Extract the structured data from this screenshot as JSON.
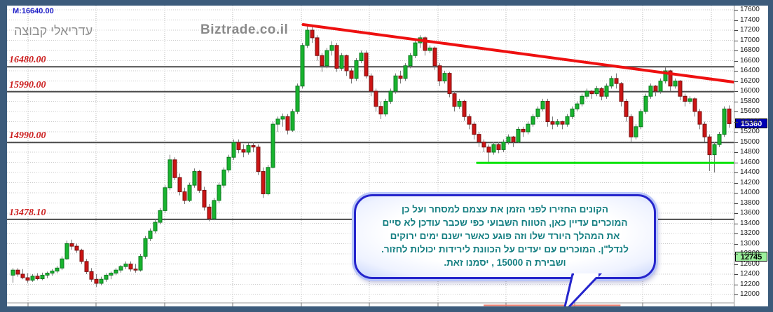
{
  "header": {
    "indicator_label": "M:16640.00",
    "group_title": "עדריאלי קבוצה",
    "watermark": "Biztrade.co.il"
  },
  "levels": [
    {
      "label": "16480.00",
      "price": 16480.0
    },
    {
      "label": "15990.00",
      "price": 15990.0
    },
    {
      "label": "14990.00",
      "price": 14990.0
    },
    {
      "label": "13478.10",
      "price": 13478.1
    }
  ],
  "axis": {
    "ticks": [
      17600,
      17400,
      17200,
      17000,
      16800,
      16600,
      16400,
      16200,
      16000,
      15800,
      15600,
      15400,
      15200,
      15000,
      14800,
      14600,
      14400,
      14200,
      14000,
      13800,
      13600,
      13400,
      13200,
      13000,
      12800,
      12600,
      12400,
      12200,
      12000
    ],
    "current_price_tag": {
      "value": "15360",
      "price": 15360,
      "bg": "#0000b4",
      "fg": "#ffffff"
    },
    "secondary_tag": {
      "value": "12745",
      "price": 12745,
      "bg": "#9cf09c",
      "fg": "#000000"
    }
  },
  "annotation_bubble": {
    "lines": [
      "הקונים החזירו לפני הזמן  את עצמם למסחר   ועל  כן",
      "המוכרים עדיין כאן,  הטווח השבועי  כפי שכבר  עודכן לא  סיים",
      "את המהלך היורד  שלו וזה  פוגע  כאשר   ישנם ימים  ירוקים",
      "לנדל\"ן. המוכרים עם  יעדים על  הכוונת  לירידות יכולות לחזור.",
      "ושבירת  ה  15000 , יסמנו זאת."
    ],
    "text_color": "#157f82"
  },
  "chart_data": {
    "type": "candlestick",
    "title": "",
    "price_axis": {
      "visible_min": 11900,
      "visible_max": 17683,
      "tick_step": 200
    },
    "colors": {
      "up": "#18b42e",
      "up_border": "#0a7a1e",
      "down": "#cc1414",
      "down_border": "#7a0f0f",
      "wick": "#787878",
      "trendline": "#ee1010",
      "support_line": "#00e400",
      "level_line": "#4a4a4a",
      "grid": "#c9c9c9",
      "session_marker": "#e87868"
    },
    "candles": [
      [
        12380,
        12520,
        12230,
        12480
      ],
      [
        12480,
        12520,
        12350,
        12400
      ],
      [
        12400,
        12500,
        12300,
        12330
      ],
      [
        12330,
        12420,
        12230,
        12280
      ],
      [
        12280,
        12400,
        12250,
        12360
      ],
      [
        12360,
        12420,
        12280,
        12310
      ],
      [
        12310,
        12430,
        12280,
        12380
      ],
      [
        12380,
        12450,
        12320,
        12420
      ],
      [
        12420,
        12500,
        12370,
        12460
      ],
      [
        12460,
        12560,
        12420,
        12520
      ],
      [
        12520,
        12750,
        12480,
        12700
      ],
      [
        12700,
        13060,
        12680,
        13000
      ],
      [
        13000,
        13080,
        12880,
        12950
      ],
      [
        12950,
        13000,
        12820,
        12870
      ],
      [
        12870,
        12900,
        12600,
        12650
      ],
      [
        12650,
        12700,
        12400,
        12450
      ],
      [
        12450,
        12520,
        12250,
        12300
      ],
      [
        12300,
        12400,
        12150,
        12220
      ],
      [
        12220,
        12350,
        12180,
        12300
      ],
      [
        12300,
        12420,
        12250,
        12380
      ],
      [
        12380,
        12450,
        12300,
        12420
      ],
      [
        12420,
        12520,
        12380,
        12480
      ],
      [
        12480,
        12580,
        12430,
        12550
      ],
      [
        12550,
        12650,
        12500,
        12600
      ],
      [
        12600,
        12650,
        12450,
        12500
      ],
      [
        12500,
        12600,
        12430,
        12480
      ],
      [
        12480,
        12800,
        12450,
        12750
      ],
      [
        12750,
        13150,
        12700,
        13100
      ],
      [
        13100,
        13300,
        13050,
        13250
      ],
      [
        13250,
        13480,
        13200,
        13420
      ],
      [
        13420,
        13700,
        13380,
        13650
      ],
      [
        13650,
        14150,
        13600,
        14100
      ],
      [
        14100,
        14750,
        14050,
        14650
      ],
      [
        14650,
        14700,
        14250,
        14300
      ],
      [
        14300,
        14380,
        13950,
        14020
      ],
      [
        14020,
        14100,
        13780,
        13850
      ],
      [
        13850,
        14200,
        13820,
        14150
      ],
      [
        14150,
        14480,
        14100,
        14420
      ],
      [
        14420,
        14450,
        14000,
        14050
      ],
      [
        14050,
        14120,
        13650,
        13720
      ],
      [
        13720,
        13780,
        13440,
        13490
      ],
      [
        13490,
        13900,
        13460,
        13850
      ],
      [
        13850,
        14200,
        13800,
        14150
      ],
      [
        14150,
        14500,
        14100,
        14450
      ],
      [
        14450,
        14750,
        14400,
        14700
      ],
      [
        14700,
        15050,
        14650,
        14990
      ],
      [
        14990,
        15050,
        14780,
        14850
      ],
      [
        14850,
        14950,
        14700,
        14800
      ],
      [
        14800,
        14980,
        14750,
        14930
      ],
      [
        14930,
        15000,
        14800,
        14900
      ],
      [
        14900,
        14950,
        14350,
        14420
      ],
      [
        14420,
        14500,
        13900,
        13980
      ],
      [
        13980,
        14550,
        13950,
        14500
      ],
      [
        14500,
        15400,
        14480,
        15350
      ],
      [
        15350,
        15500,
        15200,
        15450
      ],
      [
        15450,
        15560,
        15300,
        15500
      ],
      [
        15500,
        15550,
        15150,
        15230
      ],
      [
        15230,
        15650,
        15200,
        15600
      ],
      [
        15600,
        16150,
        15550,
        16100
      ],
      [
        16100,
        16950,
        16050,
        16900
      ],
      [
        16900,
        17280,
        16850,
        17200
      ],
      [
        17200,
        17260,
        16950,
        17050
      ],
      [
        17050,
        17100,
        16600,
        16700
      ],
      [
        16700,
        16750,
        16380,
        16500
      ],
      [
        16500,
        16850,
        16450,
        16800
      ],
      [
        16800,
        16980,
        16700,
        16900
      ],
      [
        16900,
        16950,
        16380,
        16450
      ],
      [
        16450,
        16750,
        16400,
        16700
      ],
      [
        16700,
        16720,
        16300,
        16400
      ],
      [
        16400,
        16450,
        16150,
        16250
      ],
      [
        16250,
        16650,
        16200,
        16600
      ],
      [
        16600,
        16800,
        16550,
        16750
      ],
      [
        16750,
        16800,
        16250,
        16300
      ],
      [
        16300,
        16350,
        15900,
        16000
      ],
      [
        16000,
        16050,
        15600,
        15700
      ],
      [
        15700,
        15800,
        15450,
        15550
      ],
      [
        15550,
        15850,
        15500,
        15800
      ],
      [
        15800,
        16050,
        15750,
        16000
      ],
      [
        16000,
        16350,
        15950,
        16300
      ],
      [
        16300,
        16400,
        16150,
        16250
      ],
      [
        16250,
        16550,
        16200,
        16500
      ],
      [
        16500,
        16750,
        16450,
        16700
      ],
      [
        16700,
        17000,
        16650,
        16950
      ],
      [
        16950,
        17100,
        16850,
        17050
      ],
      [
        17050,
        17080,
        16700,
        16800
      ],
      [
        16800,
        16900,
        16750,
        16850
      ],
      [
        16850,
        16880,
        16420,
        16500
      ],
      [
        16500,
        16550,
        16100,
        16200
      ],
      [
        16200,
        16400,
        16150,
        16350
      ],
      [
        16350,
        16380,
        15880,
        15950
      ],
      [
        15950,
        16000,
        15600,
        15700
      ],
      [
        15700,
        15850,
        15650,
        15800
      ],
      [
        15800,
        15830,
        15420,
        15500
      ],
      [
        15500,
        15550,
        15250,
        15350
      ],
      [
        15350,
        15400,
        15050,
        15150
      ],
      [
        15150,
        15200,
        14900,
        15000
      ],
      [
        15000,
        15050,
        14800,
        14900
      ],
      [
        14900,
        14950,
        14580,
        14800
      ],
      [
        14800,
        15000,
        14750,
        14950
      ],
      [
        14950,
        15000,
        14780,
        14850
      ],
      [
        14850,
        15050,
        14800,
        15000
      ],
      [
        15000,
        15150,
        14950,
        15100
      ],
      [
        15100,
        15120,
        14900,
        15000
      ],
      [
        15000,
        15300,
        14980,
        15250
      ],
      [
        15250,
        15300,
        15100,
        15200
      ],
      [
        15200,
        15400,
        15150,
        15350
      ],
      [
        15350,
        15550,
        15300,
        15500
      ],
      [
        15500,
        15700,
        15450,
        15650
      ],
      [
        15650,
        15850,
        15600,
        15800
      ],
      [
        15800,
        15850,
        15300,
        15400
      ],
      [
        15400,
        15500,
        15250,
        15350
      ],
      [
        15350,
        15450,
        15300,
        15400
      ],
      [
        15400,
        15420,
        15250,
        15350
      ],
      [
        15350,
        15550,
        15300,
        15500
      ],
      [
        15500,
        15700,
        15450,
        15650
      ],
      [
        15650,
        15800,
        15600,
        15750
      ],
      [
        15750,
        15950,
        15700,
        15900
      ],
      [
        15900,
        16050,
        15850,
        16000
      ],
      [
        16000,
        16020,
        15850,
        15950
      ],
      [
        15950,
        16100,
        15900,
        16050
      ],
      [
        16050,
        16080,
        15820,
        15900
      ],
      [
        15900,
        16150,
        15850,
        16100
      ],
      [
        16100,
        16300,
        16050,
        16250
      ],
      [
        16250,
        16350,
        16050,
        16150
      ],
      [
        16150,
        16180,
        15700,
        15800
      ],
      [
        15800,
        15850,
        15400,
        15500
      ],
      [
        15500,
        15550,
        15000,
        15100
      ],
      [
        15100,
        15350,
        15050,
        15300
      ],
      [
        15300,
        15650,
        15250,
        15600
      ],
      [
        15600,
        15950,
        15550,
        15900
      ],
      [
        15900,
        16150,
        15850,
        16100
      ],
      [
        16100,
        16120,
        15900,
        16000
      ],
      [
        16000,
        16250,
        15950,
        16200
      ],
      [
        16200,
        16480,
        16150,
        16400
      ],
      [
        16400,
        16420,
        16000,
        16100
      ],
      [
        16100,
        16250,
        16050,
        16200
      ],
      [
        16200,
        16220,
        15820,
        15900
      ],
      [
        15900,
        15950,
        15700,
        15800
      ],
      [
        15800,
        15900,
        15750,
        15850
      ],
      [
        15850,
        15880,
        15500,
        15600
      ],
      [
        15600,
        15650,
        15250,
        15350
      ],
      [
        15350,
        15400,
        15000,
        15100
      ],
      [
        15100,
        15150,
        14430,
        14750
      ],
      [
        14750,
        15000,
        14400,
        14950
      ],
      [
        14950,
        15200,
        14900,
        15150
      ],
      [
        15150,
        15700,
        15100,
        15650
      ],
      [
        15650,
        15720,
        15280,
        15360
      ]
    ],
    "annotations": {
      "trendline": {
        "type": "line",
        "from_candle": 59.5,
        "from_price": 17310,
        "to_candle": 149.5,
        "to_price": 16150
      },
      "support_line": {
        "type": "hline",
        "price": 14590,
        "from_candle": 94.8,
        "to_candle": 148.8
      },
      "session_marker": {
        "type": "bottom-segment",
        "from_candle": 96.3,
        "to_candle": 124.2
      }
    }
  }
}
